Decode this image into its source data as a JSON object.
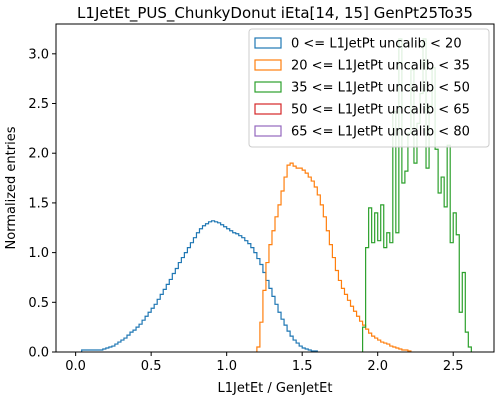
{
  "chart_data": {
    "type": "step-histogram",
    "title": "L1JetEt_PUS_ChunkyDonut iEta[14, 15] GenPt25To35",
    "xlabel": "L1JetEt / GenJetEt",
    "ylabel": "Normalized entries",
    "xlim": [
      -0.13,
      2.77
    ],
    "ylim": [
      0.0,
      3.3
    ],
    "xticks": [
      0.0,
      0.5,
      1.0,
      1.5,
      2.0,
      2.5
    ],
    "xtick_labels": [
      "0.0",
      "0.5",
      "1.0",
      "1.5",
      "2.0",
      "2.5"
    ],
    "yticks": [
      0.0,
      0.5,
      1.0,
      1.5,
      2.0,
      2.5,
      3.0
    ],
    "ytick_labels": [
      "0.0",
      "0.5",
      "1.0",
      "1.5",
      "2.0",
      "2.5",
      "3.0"
    ],
    "grid": false,
    "legend_position": "top-right",
    "bin_width": 0.02,
    "series": [
      {
        "name": "0 <= L1JetPt uncalib < 20",
        "color": "#1f77b4",
        "x_start": 0.04,
        "values": [
          0.02,
          0.02,
          0.02,
          0.02,
          0.02,
          0.02,
          0.02,
          0.03,
          0.04,
          0.05,
          0.06,
          0.08,
          0.1,
          0.12,
          0.14,
          0.17,
          0.2,
          0.22,
          0.25,
          0.28,
          0.32,
          0.36,
          0.4,
          0.44,
          0.48,
          0.53,
          0.58,
          0.63,
          0.68,
          0.73,
          0.79,
          0.84,
          0.9,
          0.95,
          1.0,
          1.05,
          1.1,
          1.15,
          1.2,
          1.24,
          1.27,
          1.29,
          1.31,
          1.32,
          1.31,
          1.3,
          1.28,
          1.26,
          1.24,
          1.22,
          1.2,
          1.19,
          1.17,
          1.15,
          1.12,
          1.09,
          1.05,
          1.0,
          0.94,
          0.88,
          0.8,
          0.72,
          0.64,
          0.56,
          0.48,
          0.4,
          0.33,
          0.27,
          0.21,
          0.16,
          0.12,
          0.09,
          0.06,
          0.04,
          0.03,
          0.02,
          0.01,
          0.01
        ]
      },
      {
        "name": "20 <= L1JetPt uncalib < 35",
        "color": "#ff7f0e",
        "x_start": 1.2,
        "values": [
          0.05,
          0.3,
          0.62,
          0.9,
          1.08,
          1.22,
          1.36,
          1.48,
          1.62,
          1.76,
          1.88,
          1.9,
          1.87,
          1.85,
          1.85,
          1.83,
          1.8,
          1.76,
          1.72,
          1.66,
          1.58,
          1.48,
          1.36,
          1.22,
          1.08,
          0.95,
          0.82,
          0.72,
          0.64,
          0.58,
          0.52,
          0.46,
          0.41,
          0.36,
          0.31,
          0.27,
          0.23,
          0.19,
          0.16,
          0.14,
          0.12,
          0.1,
          0.09,
          0.08,
          0.06,
          0.05,
          0.04,
          0.03,
          0.02,
          0.02,
          0.01
        ]
      },
      {
        "name": "35 <= L1JetPt uncalib < 50",
        "color": "#2ca02c",
        "x_start": 1.9,
        "values": [
          0.25,
          1.05,
          1.45,
          1.1,
          1.4,
          1.12,
          1.48,
          1.05,
          1.2,
          1.1,
          2.42,
          1.2,
          3.15,
          1.7,
          1.82,
          2.2,
          2.84,
          1.9,
          2.3,
          2.6,
          3.15,
          1.85,
          2.48,
          2.86,
          2.04,
          1.6,
          1.76,
          1.46,
          2.08,
          1.1,
          1.4,
          1.18,
          0.4,
          0.8,
          0.2,
          0.05
        ]
      },
      {
        "name": "50 <= L1JetPt uncalib < 65",
        "color": "#d62728",
        "x_start": 0.0,
        "values": []
      },
      {
        "name": "65 <= L1JetPt uncalib < 80",
        "color": "#9467bd",
        "x_start": 0.0,
        "values": []
      }
    ]
  }
}
